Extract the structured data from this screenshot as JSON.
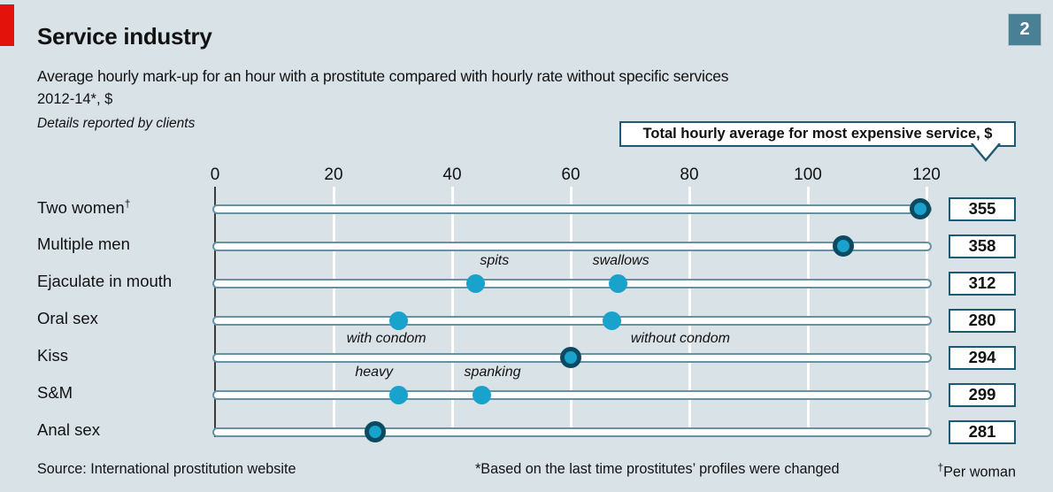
{
  "header": {
    "index_badge": "2",
    "title": "Service industry",
    "subtitle": "Average hourly mark-up for an hour with a prostitute compared with hourly rate without specific services",
    "unit_line": "2012-14*, $",
    "detail_line": "Details reported by clients"
  },
  "callout": {
    "text": "Total hourly average for most expensive service, $"
  },
  "chart_data": {
    "type": "scatter",
    "title": "Service industry",
    "xlabel": "$ mark-up per hour",
    "xlim": [
      0,
      121
    ],
    "xticks": [
      0,
      20,
      40,
      60,
      80,
      100,
      120
    ],
    "grid": "vertical white gridlines, dark zero axis",
    "legend_note": "right-hand boxes show total hourly average for most expensive service, $",
    "rows": [
      {
        "label": "Two women",
        "label_sup": "†",
        "points": [
          {
            "value": 119,
            "ring": true
          }
        ],
        "total": "355"
      },
      {
        "label": "Multiple men",
        "points": [
          {
            "value": 106,
            "ring": true
          }
        ],
        "total": "358"
      },
      {
        "label": "Ejaculate in mouth",
        "points": [
          {
            "value": 44,
            "ring": false,
            "note": "spits",
            "note_pos": "above",
            "note_dx": 21
          },
          {
            "value": 68,
            "ring": false,
            "note": "swallows",
            "note_pos": "above",
            "note_dx": 3
          }
        ],
        "total": "312"
      },
      {
        "label": "Oral sex",
        "points": [
          {
            "value": 31,
            "ring": false,
            "note": "with condom",
            "note_pos": "below",
            "note_dx": -14
          },
          {
            "value": 67,
            "ring": false,
            "note": "without condom",
            "note_pos": "below",
            "note_dx": 77
          }
        ],
        "total": "280"
      },
      {
        "label": "Kiss",
        "points": [
          {
            "value": 60,
            "ring": true
          }
        ],
        "total": "294"
      },
      {
        "label": "S&M",
        "points": [
          {
            "value": 31,
            "ring": false,
            "note": "heavy",
            "note_pos": "above",
            "note_dx": -28
          },
          {
            "value": 45,
            "ring": false,
            "note": "spanking",
            "note_pos": "above",
            "note_dx": 12
          }
        ],
        "total": "299"
      },
      {
        "label": "Anal sex",
        "points": [
          {
            "value": 27,
            "ring": true
          }
        ],
        "total": "281"
      }
    ]
  },
  "footer": {
    "source": "Source: International prostitution website",
    "footnote": "*Based on the last time prostitutes’ profiles were changed",
    "dagger_sup": "†",
    "dagger_text": "Per woman"
  },
  "colors": {
    "background": "#d8e2e7",
    "red": "#e3120b",
    "cyan": "#18a2cc",
    "ring": "#0c4a61",
    "track_border": "#6792a1",
    "box_border": "#1d5a72",
    "badge": "#4a8096",
    "gridline": "#ffffff",
    "text": "#121212"
  }
}
